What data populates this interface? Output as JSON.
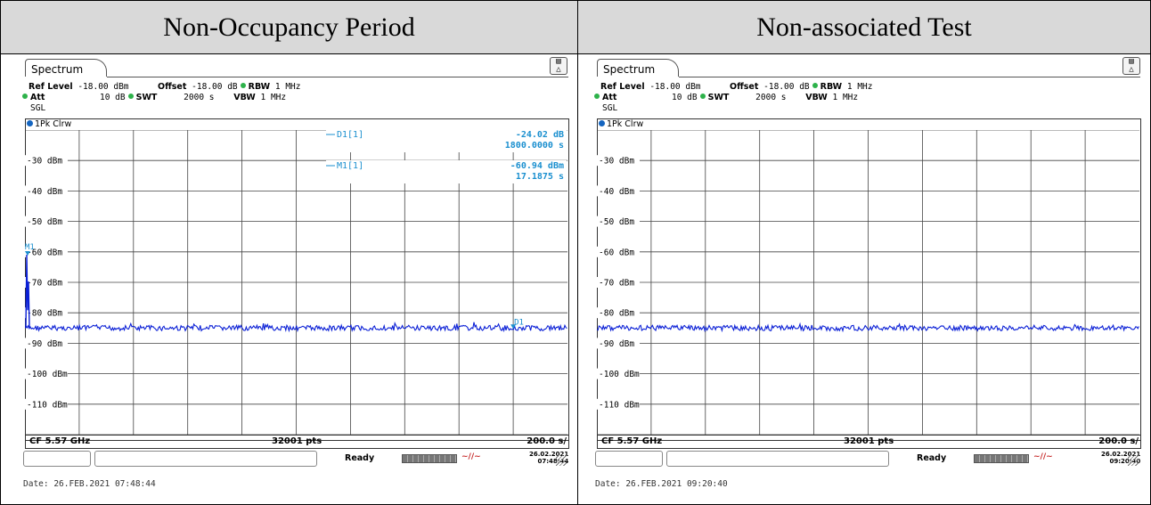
{
  "headers": [
    "Non-Occupancy Period",
    "Non-associated Test"
  ],
  "colors": {
    "trace": "#0a1fd6",
    "marker": "#1a8fcf",
    "header_bg": "#d9d9d9",
    "grid": "#333333",
    "status_dot": "#2db24a"
  },
  "panels": [
    {
      "tab_label": "Spectrum",
      "corner_icon": "display-icon",
      "info": {
        "ref_level_label": "Ref Level",
        "ref_level_value": "-18.00 dBm",
        "offset_label": "Offset",
        "offset_value": "-18.00 dB",
        "rbw_label": "RBW",
        "rbw_value": "1 MHz",
        "att_label": "Att",
        "att_value": "10 dB",
        "swt_label": "SWT",
        "swt_value": "2000 s",
        "vbw_label": "VBW",
        "vbw_value": "1 MHz",
        "sgl": "SGL"
      },
      "trace_label": "1Pk Clrw",
      "y_labels": [
        "-30 dBm",
        "-40 dBm",
        "-50 dBm",
        "-60 dBm",
        "-70 dBm",
        "-80 dBm",
        "-90 dBm",
        "-100 dBm",
        "-110 dBm"
      ],
      "marker_table": [
        {
          "name": "D1[1]",
          "value": "-24.02 dB",
          "value2": "1800.0000 s"
        },
        {
          "name": "M1[1]",
          "value": "-60.94 dBm",
          "value2": "17.1875 s"
        }
      ],
      "marker_labels": {
        "m1": "M1",
        "d1": "D1"
      },
      "bottom": {
        "cf": "CF 5.57 GHz",
        "pts": "32001 pts",
        "span": "200.0 s/"
      },
      "status": {
        "ready": "Ready",
        "date_line1": "26.02.2021",
        "date_line2": "07:48:44"
      },
      "footer_date": "Date: 26.FEB.2021  07:48:44"
    },
    {
      "tab_label": "Spectrum",
      "corner_icon": "display-icon",
      "info": {
        "ref_level_label": "Ref Level",
        "ref_level_value": "-18.00 dBm",
        "offset_label": "Offset",
        "offset_value": "-18.00 dB",
        "rbw_label": "RBW",
        "rbw_value": "1 MHz",
        "att_label": "Att",
        "att_value": "10 dB",
        "swt_label": "SWT",
        "swt_value": "2000 s",
        "vbw_label": "VBW",
        "vbw_value": "1 MHz",
        "sgl": "SGL"
      },
      "trace_label": "1Pk Clrw",
      "y_labels": [
        "-30 dBm",
        "-40 dBm",
        "-50 dBm",
        "-60 dBm",
        "-70 dBm",
        "-80 dBm",
        "-90 dBm",
        "-100 dBm",
        "-110 dBm"
      ],
      "marker_table": [],
      "marker_labels": {},
      "bottom": {
        "cf": "CF 5.57 GHz",
        "pts": "32001 pts",
        "span": "200.0 s/"
      },
      "status": {
        "ready": "Ready",
        "date_line1": "26.02.2021",
        "date_line2": "09:20:40"
      },
      "footer_date": "Date: 26.FEB.2021  09:20:40"
    }
  ]
}
